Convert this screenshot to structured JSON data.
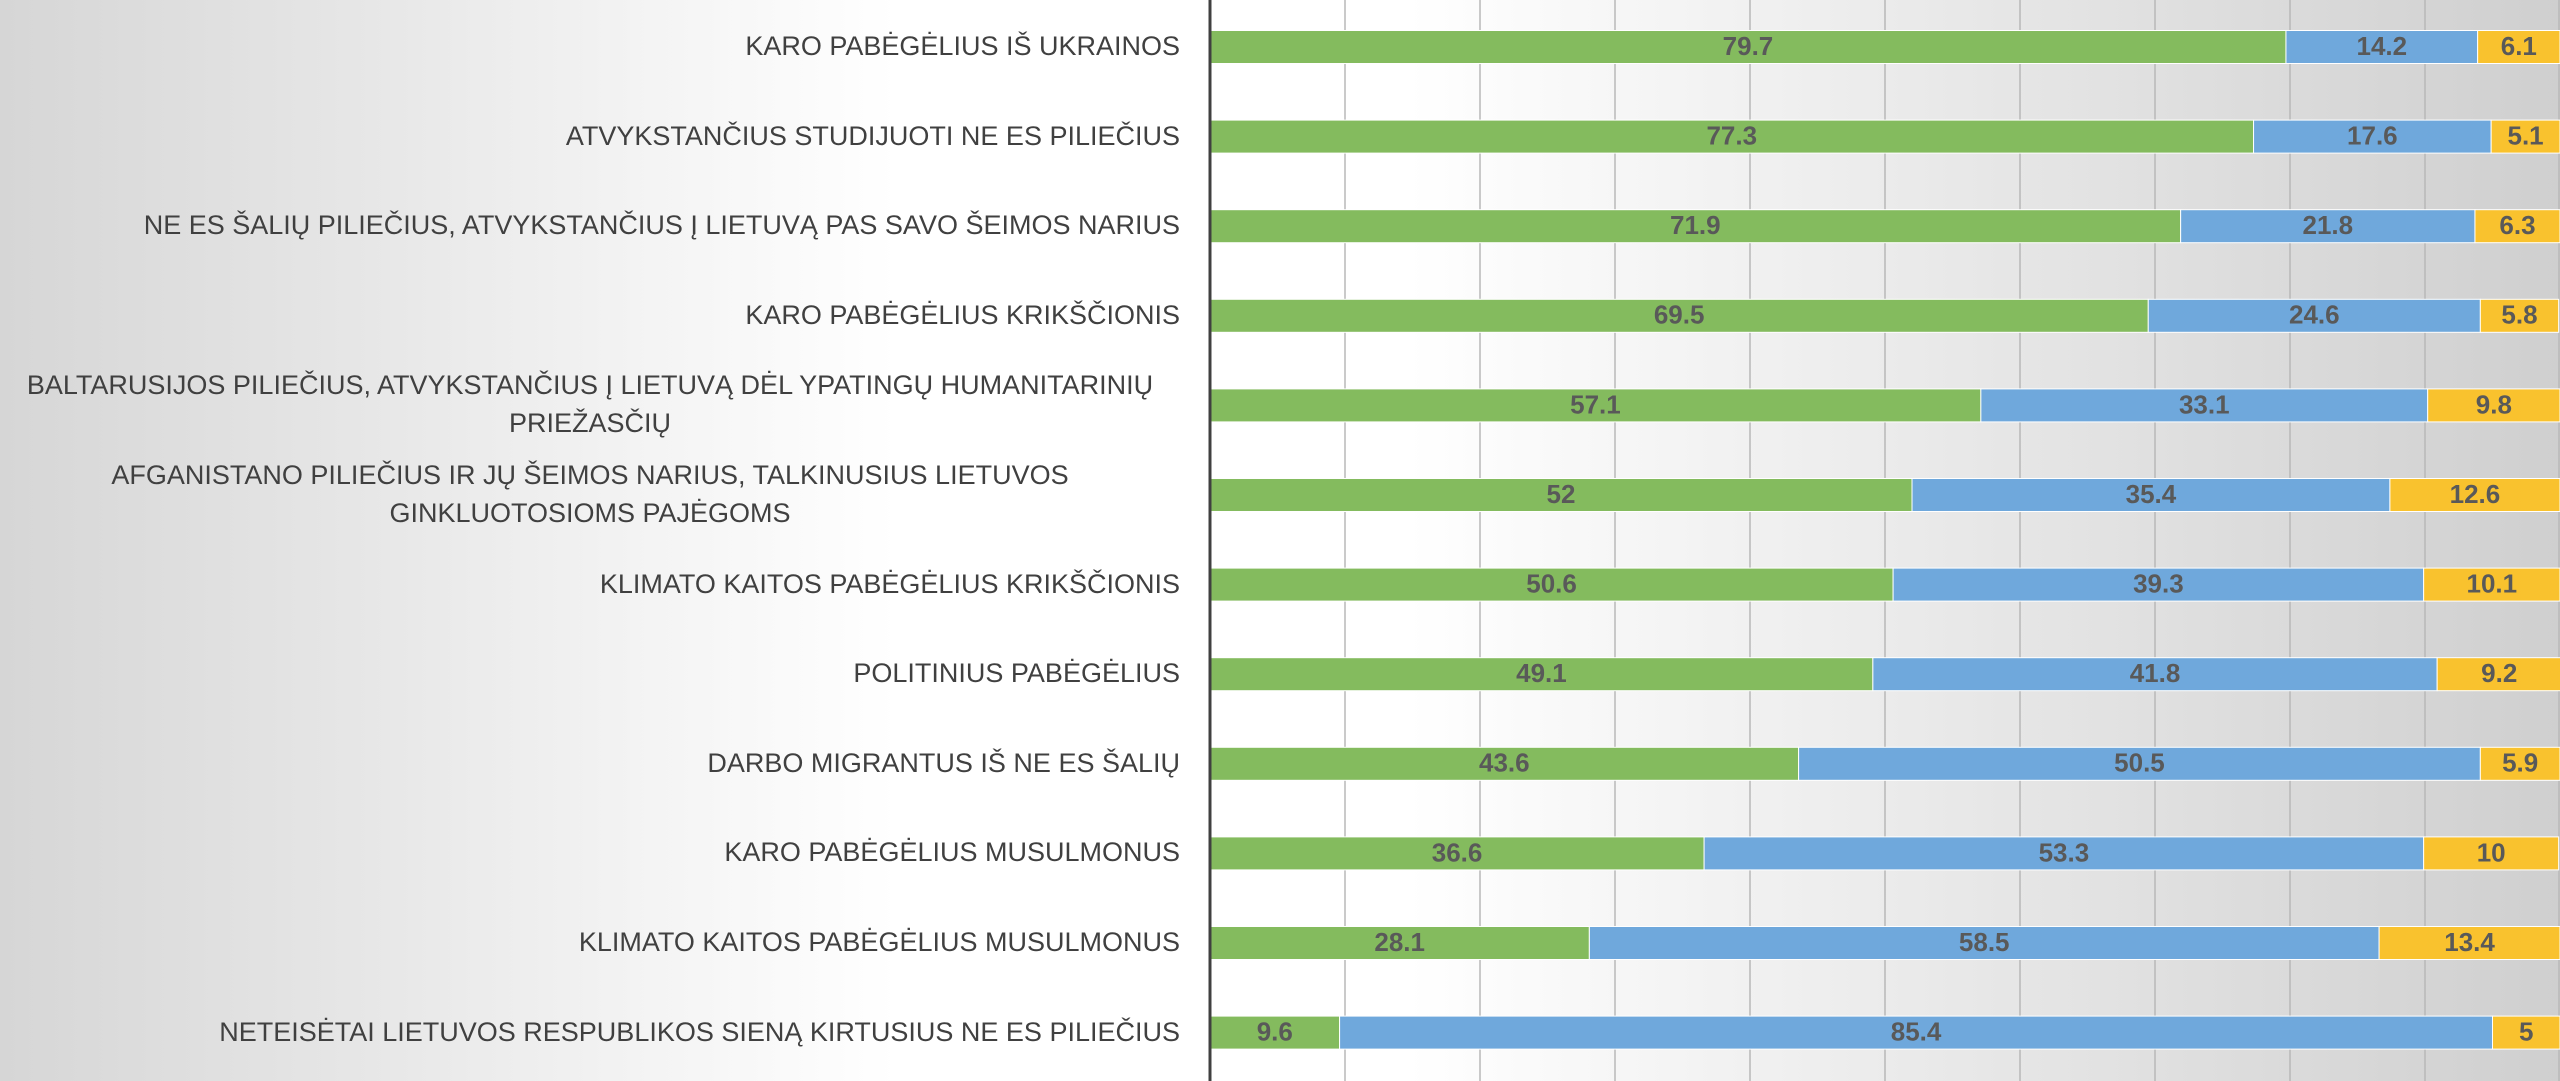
{
  "chart_data": {
    "type": "stacked_bar_horizontal",
    "categories": [
      "KARO PABĖGĖLIUS IŠ UKRAINOS",
      "ATVYKSTANČIUS STUDIJUOTI NE ES PILIEČIUS",
      "NE ES ŠALIŲ PILIEČIUS, ATVYKSTANČIUS Į LIETUVĄ PAS SAVO ŠEIMOS NARIUS",
      "KARO PABĖGĖLIUS KRIKŠČIONIS",
      "BALTARUSIJOS PILIEČIUS, ATVYKSTANČIUS Į LIETUVĄ DĖL YPATINGŲ HUMANITARINIŲ PRIEŽASČIŲ",
      "AFGANISTANO PILIEČIUS IR JŲ ŠEIMOS NARIUS, TALKINUSIUS LIETUVOS GINKLUOTOSIOMS PAJĖGOMS",
      "KLIMATO KAITOS PABĖGĖLIUS KRIKŠČIONIS",
      "POLITINIUS PABĖGĖLIUS",
      "DARBO MIGRANTUS IŠ NE ES ŠALIŲ",
      "KARO PABĖGĖLIUS MUSULMONUS",
      "KLIMATO KAITOS PABĖGĖLIUS MUSULMONUS",
      "NETEISĖTAI LIETUVOS RESPUBLIKOS SIENĄ KIRTUSIUS NE ES PILIEČIUS"
    ],
    "series": [
      {
        "color": "#84bb5e",
        "values": [
          79.7,
          77.3,
          71.9,
          69.5,
          57.1,
          52,
          50.6,
          49.1,
          43.6,
          36.6,
          28.1,
          9.6
        ]
      },
      {
        "color": "#6fa8dc",
        "values": [
          14.2,
          17.6,
          21.8,
          24.6,
          33.1,
          35.4,
          39.3,
          41.8,
          50.5,
          53.3,
          58.5,
          85.4
        ]
      },
      {
        "color": "#f9c22e",
        "values": [
          6.1,
          5.1,
          6.3,
          5.8,
          9.8,
          12.6,
          10.1,
          9.2,
          5.9,
          10,
          13.4,
          5
        ]
      }
    ],
    "xlim": [
      0,
      100
    ],
    "xticks": [
      0,
      10,
      20,
      30,
      40,
      50,
      60,
      70,
      80,
      90,
      100
    ],
    "grid": true
  }
}
